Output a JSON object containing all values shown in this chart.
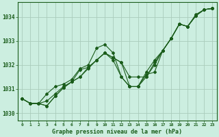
{
  "title": "Graphe pression niveau de la mer (hPa)",
  "background_color": "#cceee0",
  "grid_color": "#aaccbb",
  "line_color": "#1a5c1a",
  "ylim": [
    1029.7,
    1034.6
  ],
  "yticks": [
    1030,
    1031,
    1032,
    1033,
    1034
  ],
  "x_ticks": [
    0,
    1,
    2,
    3,
    4,
    5,
    6,
    7,
    8,
    9,
    10,
    11,
    12,
    13,
    14,
    15,
    16,
    17,
    18,
    19,
    20,
    21,
    22,
    23
  ],
  "series": [
    [
      1030.6,
      1030.4,
      1030.4,
      1030.5,
      1030.8,
      1031.1,
      1031.3,
      1031.8,
      1031.9,
      1032.2,
      1032.5,
      1032.3,
      1032.1,
      1031.1,
      1031.1,
      1031.5,
      1032.1,
      1032.6,
      1033.1,
      1033.7,
      1033.6,
      1034.05,
      1034.3,
      1034.35
    ],
    [
      1030.6,
      1030.4,
      1030.4,
      1030.3,
      1030.7,
      1031.05,
      1031.3,
      1031.5,
      1031.9,
      1032.2,
      1032.5,
      1032.3,
      1032.1,
      1031.5,
      1031.5,
      1031.5,
      1032.0,
      1032.6,
      1033.1,
      1033.7,
      1033.6,
      1034.1,
      1034.3,
      1034.35
    ],
    [
      1030.6,
      1030.4,
      1030.4,
      1030.3,
      1030.7,
      1031.05,
      1031.3,
      1031.5,
      1031.85,
      1032.2,
      1032.5,
      1032.2,
      1031.5,
      1031.1,
      1031.1,
      1031.6,
      1031.7,
      1032.6,
      1033.1,
      1033.7,
      1033.6,
      1034.05,
      1034.3,
      1034.35
    ],
    [
      1030.6,
      1030.4,
      1030.4,
      1030.8,
      1031.1,
      1031.2,
      1031.4,
      1031.85,
      1032.0,
      1032.7,
      1032.85,
      1032.5,
      1031.5,
      1031.1,
      1031.1,
      1031.7,
      1032.2,
      1032.6,
      1033.1,
      1033.7,
      1033.6,
      1034.05,
      1034.3,
      1034.35
    ]
  ]
}
